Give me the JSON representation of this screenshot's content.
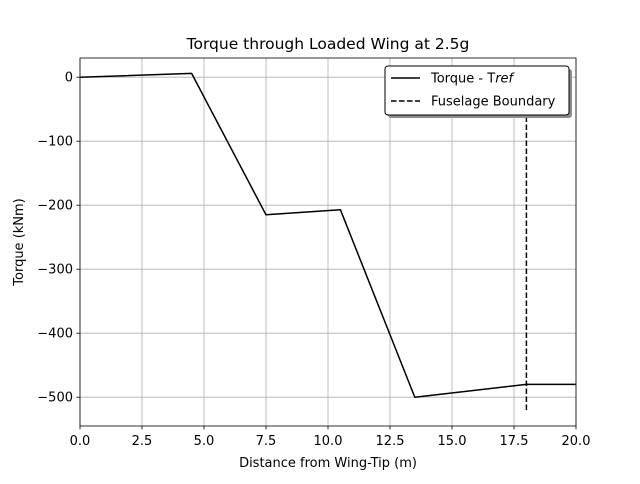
{
  "chart_data": {
    "type": "line",
    "title": "Torque through Loaded Wing at 2.5g",
    "xlabel": "Distance from Wing-Tip (m)",
    "ylabel": "Torque (kNm)",
    "xlim": [
      0,
      20
    ],
    "ylim": [
      -545,
      30
    ],
    "x_ticks": [
      0,
      2.5,
      5,
      7.5,
      10,
      12.5,
      15,
      17.5,
      20
    ],
    "x_tick_labels": [
      "0.0",
      "2.5",
      "5.0",
      "7.5",
      "10.0",
      "12.5",
      "15.0",
      "17.5",
      "20.0"
    ],
    "y_ticks": [
      0,
      -100,
      -200,
      -300,
      -400,
      -500
    ],
    "y_tick_labels": [
      "0",
      "−100",
      "−200",
      "−300",
      "−400",
      "−500"
    ],
    "grid": true,
    "legend_position": "top-right",
    "series": [
      {
        "name": "Torque - Tref",
        "legend_prefix": "Torque - T",
        "legend_italic": "ref",
        "style": "solid",
        "color": "#000000",
        "x": [
          0,
          4.5,
          7.5,
          10.5,
          13.5,
          18,
          20
        ],
        "y": [
          0,
          6,
          -215,
          -207,
          -500,
          -480,
          -480
        ]
      },
      {
        "name": "Fuselage Boundary",
        "style": "dashed",
        "color": "#000000",
        "x": [
          18,
          18
        ],
        "y": [
          -520,
          -50
        ]
      }
    ]
  }
}
